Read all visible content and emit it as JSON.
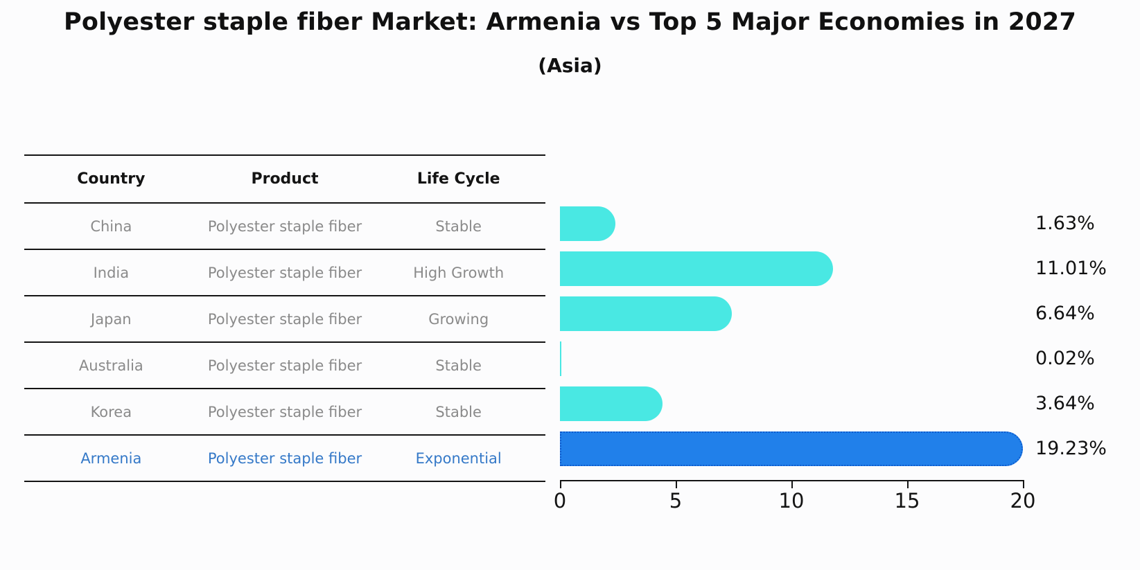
{
  "title": "Polyester staple fiber Market: Armenia vs Top 5 Major Economies in 2027",
  "subtitle": "(Asia)",
  "table": {
    "columns": [
      "Country",
      "Product",
      "Life Cycle"
    ],
    "rows": [
      {
        "country": "China",
        "product": "Polyester staple fiber",
        "life_cycle": "Stable",
        "highlight": false
      },
      {
        "country": "India",
        "product": "Polyester staple fiber",
        "life_cycle": "High Growth",
        "highlight": false
      },
      {
        "country": "Japan",
        "product": "Polyester staple fiber",
        "life_cycle": "Growing",
        "highlight": false
      },
      {
        "country": "Australia",
        "product": "Polyester staple fiber",
        "life_cycle": "Stable",
        "highlight": false
      },
      {
        "country": "Korea",
        "product": "Polyester staple fiber",
        "life_cycle": "Stable",
        "highlight": false
      },
      {
        "country": "Armenia",
        "product": "Polyester staple fiber",
        "life_cycle": "Exponential",
        "highlight": true
      }
    ]
  },
  "chart_data": {
    "type": "bar",
    "orientation": "horizontal",
    "title": "Polyester staple fiber Market: Armenia vs Top 5 Major Economies in 2027",
    "subtitle": "(Asia)",
    "categories": [
      "China",
      "India",
      "Japan",
      "Australia",
      "Korea",
      "Armenia"
    ],
    "values": [
      1.63,
      11.01,
      6.64,
      0.02,
      3.64,
      19.23
    ],
    "value_labels": [
      "1.63%",
      "11.01%",
      "6.64%",
      "0.02%",
      "3.64%",
      "19.23%"
    ],
    "xlim": [
      0,
      20
    ],
    "x_ticks": [
      "0",
      "5",
      "10",
      "15",
      "20"
    ],
    "grid": false,
    "legend": "none",
    "bar_color": "#49e8e3",
    "highlight_bar_color": "#2180ea",
    "highlight_edge_color": "#0d5acc",
    "highlight_index": 5,
    "text_color": "#141414",
    "muted_text_color": "#8a8a8a",
    "highlight_text_color": "#3579c8"
  }
}
